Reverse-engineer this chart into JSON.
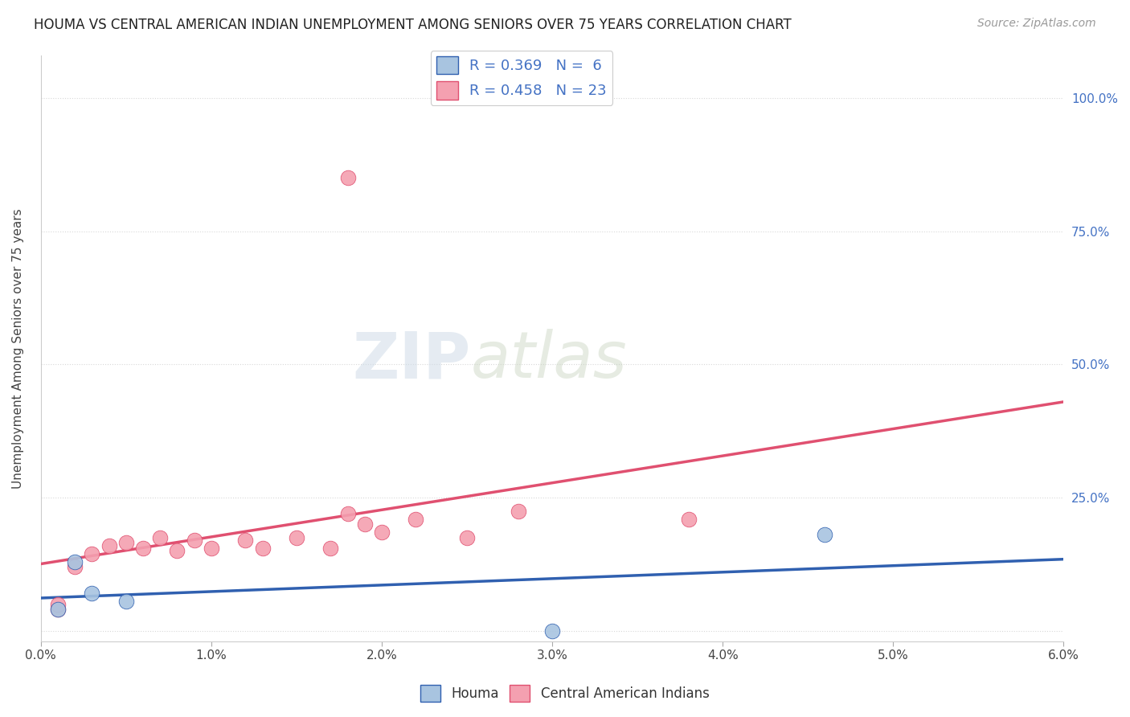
{
  "title": "HOUMA VS CENTRAL AMERICAN INDIAN UNEMPLOYMENT AMONG SENIORS OVER 75 YEARS CORRELATION CHART",
  "source": "Source: ZipAtlas.com",
  "ylabel": "Unemployment Among Seniors over 75 years",
  "xlim": [
    0.0,
    0.06
  ],
  "ylim": [
    -0.02,
    1.08
  ],
  "xticks": [
    0.0,
    0.01,
    0.02,
    0.03,
    0.04,
    0.05,
    0.06
  ],
  "xticklabels": [
    "0.0%",
    "1.0%",
    "2.0%",
    "3.0%",
    "4.0%",
    "5.0%",
    "6.0%"
  ],
  "ytick_positions": [
    0.0,
    0.25,
    0.5,
    0.75,
    1.0
  ],
  "yticklabels": [
    "",
    "25.0%",
    "50.0%",
    "75.0%",
    "100.0%"
  ],
  "houma_x": [
    0.001,
    0.002,
    0.003,
    0.005,
    0.03,
    0.046
  ],
  "houma_y": [
    0.04,
    0.13,
    0.07,
    0.055,
    0.0,
    0.18
  ],
  "central_x": [
    0.001,
    0.001,
    0.002,
    0.003,
    0.004,
    0.005,
    0.006,
    0.007,
    0.008,
    0.009,
    0.01,
    0.012,
    0.013,
    0.015,
    0.017,
    0.019,
    0.02,
    0.022,
    0.025,
    0.028,
    0.018,
    0.038,
    0.018
  ],
  "central_y": [
    0.04,
    0.05,
    0.12,
    0.145,
    0.16,
    0.165,
    0.155,
    0.175,
    0.15,
    0.17,
    0.155,
    0.17,
    0.155,
    0.175,
    0.155,
    0.2,
    0.185,
    0.21,
    0.175,
    0.225,
    0.85,
    0.21,
    0.22
  ],
  "houma_color": "#a8c4e0",
  "central_color": "#f4a0b0",
  "houma_line_color": "#3060b0",
  "central_line_color": "#e05070",
  "houma_trend_start_x": 0.0,
  "houma_trend_end_x": 0.06,
  "central_trend_start_x": 0.0,
  "central_trend_end_x": 0.06,
  "R_houma": 0.369,
  "N_houma": 6,
  "R_central": 0.458,
  "N_central": 23,
  "watermark_zip": "ZIP",
  "watermark_atlas": "atlas",
  "background_color": "#ffffff",
  "grid_color": "#d8d8d8"
}
